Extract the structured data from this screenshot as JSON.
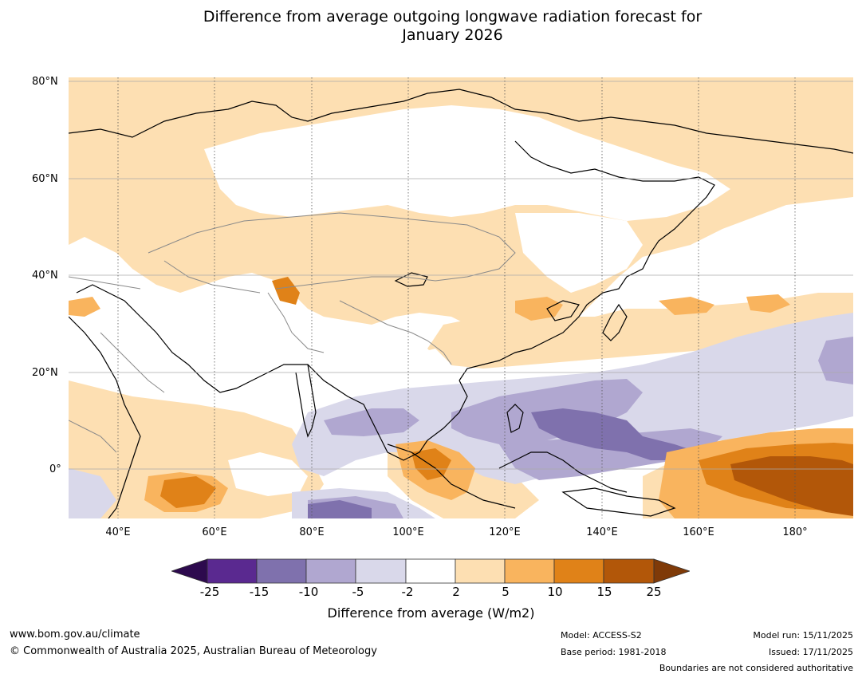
{
  "title": {
    "line1": "Difference from average outgoing longwave radiation forecast for",
    "line2": "January 2026"
  },
  "map": {
    "lat_labels": [
      "80°N",
      "60°N",
      "40°N",
      "20°N",
      "0°"
    ],
    "lon_labels": [
      "40°E",
      "60°E",
      "80°E",
      "100°E",
      "120°E",
      "140°E",
      "160°E",
      "180°"
    ],
    "colors": {
      "ocean_land_neutral": "#ffffff",
      "coastline": "#000000",
      "border": "#8a8a8a",
      "grid": "#aaaaaa"
    }
  },
  "colorbar": {
    "title": "Difference from average (W/m2)",
    "ticks": [
      "-25",
      "-15",
      "-10",
      "-5",
      "-2",
      "2",
      "5",
      "10",
      "15",
      "25"
    ],
    "colors": [
      "#2d0a4e",
      "#5a2990",
      "#7f71ad",
      "#b0a7d0",
      "#d9d8ea",
      "#ffffff",
      "#fddfb2",
      "#f9b45e",
      "#e08218",
      "#b25709",
      "#7f3a08"
    ]
  },
  "footer": {
    "website": "www.bom.gov.au/climate",
    "copyright": "© Commonwealth of Australia 2025, Australian Bureau of Meteorology",
    "model": "Model: ACCESS-S2",
    "base_period": "Base period: 1981-2018",
    "model_run": "Model run: 15/11/2025",
    "issued": "Issued: 17/11/2025",
    "disclaimer": "Boundaries are not considered authoritative"
  }
}
